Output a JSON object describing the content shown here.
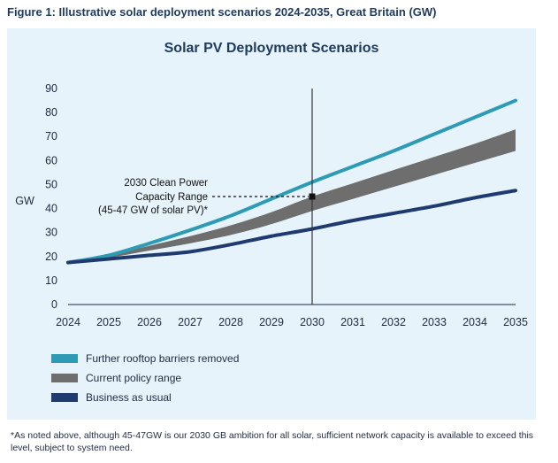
{
  "figure_caption": "Figure 1: Illustrative solar deployment scenarios 2024-2035, Great Britain (GW)",
  "footnote": "*As noted above, although 45-47GW is our 2030 GB ambition for all solar, sufficient network capacity is available to exceed this level, subject to system need.",
  "colors": {
    "panel_bg": "#e6f3fa",
    "rooftop": "#2e9bb5",
    "policy_range": "#6e6e6e",
    "business_as_usual": "#1f3a6e"
  },
  "chart_data": {
    "type": "line",
    "title": "Solar PV Deployment Scenarios",
    "xlabel": "",
    "ylabel": "GW",
    "x": [
      2024,
      2025,
      2026,
      2027,
      2028,
      2029,
      2030,
      2031,
      2032,
      2033,
      2034,
      2035
    ],
    "xticks": [
      "2024",
      "2025",
      "2026",
      "2027",
      "2028",
      "2029",
      "2030",
      "2031",
      "2032",
      "2033",
      "2034",
      "2035"
    ],
    "ylim": [
      0,
      90
    ],
    "yticks": [
      "0",
      "10",
      "20",
      "30",
      "40",
      "50",
      "60",
      "70",
      "80",
      "90"
    ],
    "series": [
      {
        "name": "Further rooftop barriers removed",
        "kind": "line",
        "values": [
          17.5,
          20.5,
          25.5,
          31,
          37,
          44,
          51,
          57.5,
          64,
          71,
          78,
          85
        ]
      },
      {
        "name": "Current policy range",
        "kind": "band",
        "upper": [
          17.5,
          20.5,
          24.5,
          28.5,
          33,
          38.5,
          45,
          50.5,
          56,
          61.5,
          67,
          73
        ],
        "lower": [
          17.5,
          19.5,
          22.5,
          25.5,
          29,
          33.5,
          39,
          44,
          49,
          54,
          59,
          64
        ]
      },
      {
        "name": "Business as usual",
        "kind": "line",
        "values": [
          17.5,
          19,
          20.5,
          22,
          25,
          28.5,
          31.5,
          35,
          38,
          41,
          44.5,
          47.5
        ]
      }
    ],
    "marker_year": 2030,
    "annotation": {
      "lines": [
        "2030 Clean Power",
        "Capacity Range",
        "(45-47 GW of solar PV)*"
      ],
      "point": [
        2030,
        45
      ]
    }
  }
}
